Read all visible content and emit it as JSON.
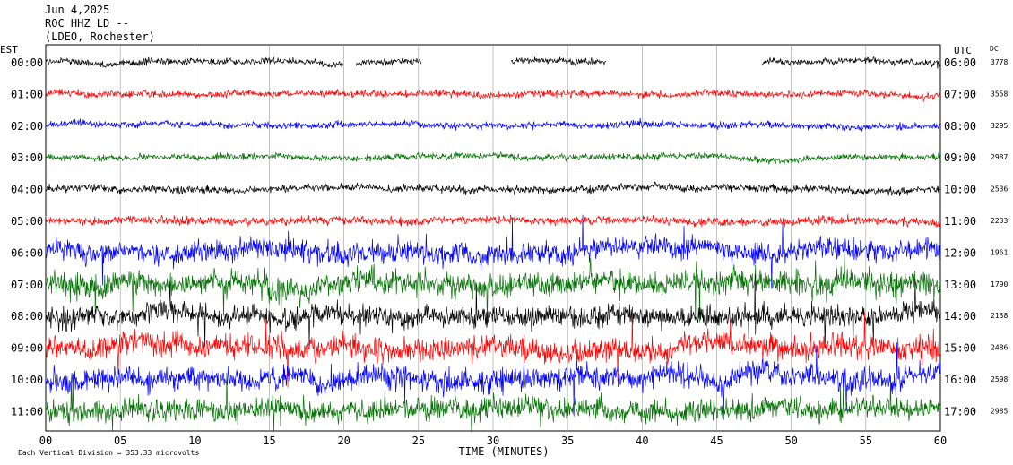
{
  "header": {
    "date": "Jun 4,2025",
    "station": "ROC HHZ LD --",
    "network": "(LDEO, Rochester)"
  },
  "chart_data": {
    "type": "line",
    "title": "Jun 4,2025",
    "left_axis_label": "EST",
    "right_axis_label": "UTC",
    "dc_label": "DC",
    "xlabel": "TIME (MINUTES)",
    "xlim": [
      0,
      60
    ],
    "x_ticks": [
      "00",
      "05",
      "10",
      "15",
      "20",
      "25",
      "30",
      "35",
      "40",
      "45",
      "50",
      "55",
      "60"
    ],
    "grid": true,
    "footer_note": "Each Vertical Division = 353.33 microvolts",
    "trace_colors": [
      "#000000",
      "#ff0000",
      "#0000ff",
      "#007000"
    ],
    "traces": [
      {
        "est": "00:00",
        "utc": "06:00",
        "dc": "3778",
        "amplitude": 0.8,
        "gaps": [
          [
            20.0,
            20.8
          ],
          [
            25.2,
            31.2
          ],
          [
            37.6,
            48.0
          ]
        ]
      },
      {
        "est": "01:00",
        "utc": "07:00",
        "dc": "3558",
        "amplitude": 0.8
      },
      {
        "est": "02:00",
        "utc": "08:00",
        "dc": "3295",
        "amplitude": 0.8
      },
      {
        "est": "03:00",
        "utc": "09:00",
        "dc": "2987",
        "amplitude": 0.8
      },
      {
        "est": "04:00",
        "utc": "10:00",
        "dc": "2536",
        "amplitude": 0.9
      },
      {
        "est": "05:00",
        "utc": "11:00",
        "dc": "2233",
        "amplitude": 1.0
      },
      {
        "est": "06:00",
        "utc": "12:00",
        "dc": "1961",
        "amplitude": 2.6
      },
      {
        "est": "07:00",
        "utc": "13:00",
        "dc": "1790",
        "amplitude": 3.0
      },
      {
        "est": "08:00",
        "utc": "14:00",
        "dc": "2138",
        "amplitude": 2.6
      },
      {
        "est": "09:00",
        "utc": "15:00",
        "dc": "2486",
        "amplitude": 2.8
      },
      {
        "est": "10:00",
        "utc": "16:00",
        "dc": "2598",
        "amplitude": 2.8
      },
      {
        "est": "11:00",
        "utc": "17:00",
        "dc": "2985",
        "amplitude": 2.6
      }
    ]
  }
}
